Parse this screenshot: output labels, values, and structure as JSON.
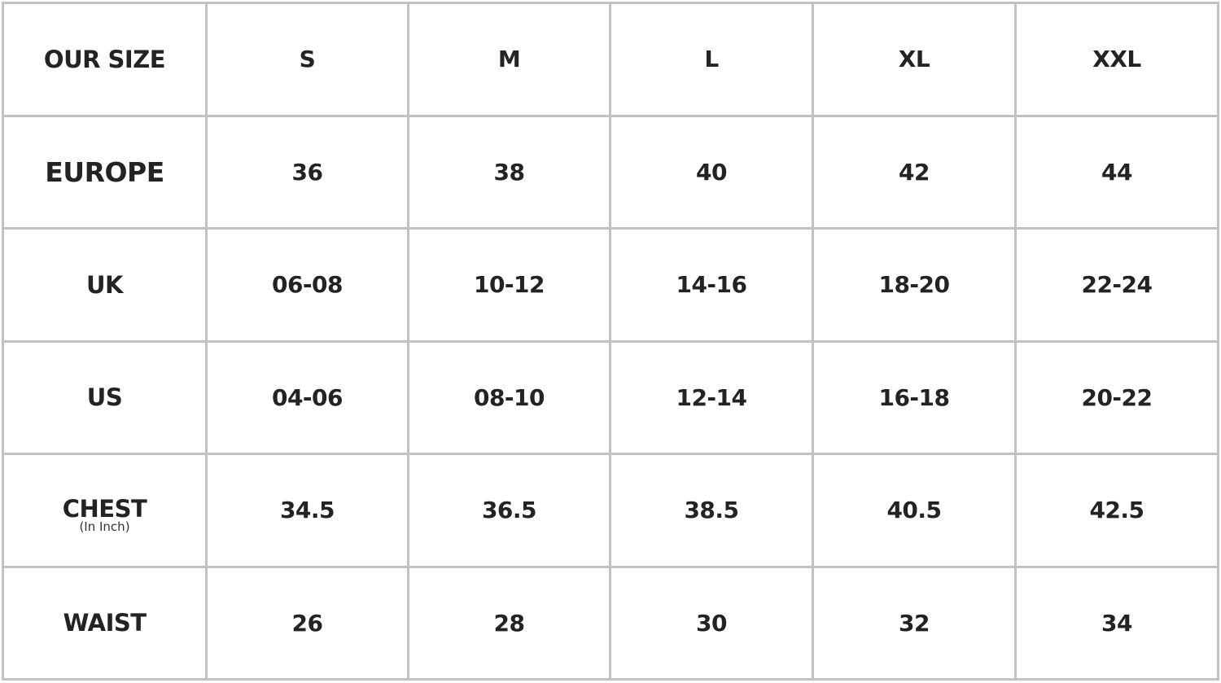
{
  "header": {
    "label": "OUR SIZE",
    "sizes": [
      "S",
      "M",
      "L",
      "XL",
      "XXL"
    ]
  },
  "rows": [
    {
      "label": "EUROPE",
      "values": [
        "36",
        "38",
        "40",
        "42",
        "44"
      ]
    },
    {
      "label": "UK",
      "values": [
        "06-08",
        "10-12",
        "14-16",
        "18-20",
        "22-24"
      ]
    },
    {
      "label": "US",
      "values": [
        "04-06",
        "08-10",
        "12-14",
        "16-18",
        "20-22"
      ]
    },
    {
      "label": "CHEST",
      "sublabel": "(In Inch)",
      "values": [
        "34.5",
        "36.5",
        "38.5",
        "40.5",
        "42.5"
      ]
    },
    {
      "label": "WAIST",
      "values": [
        "26",
        "28",
        "30",
        "32",
        "34"
      ]
    }
  ],
  "colors": {
    "border": "#c2c2c2",
    "text": "#232323"
  }
}
